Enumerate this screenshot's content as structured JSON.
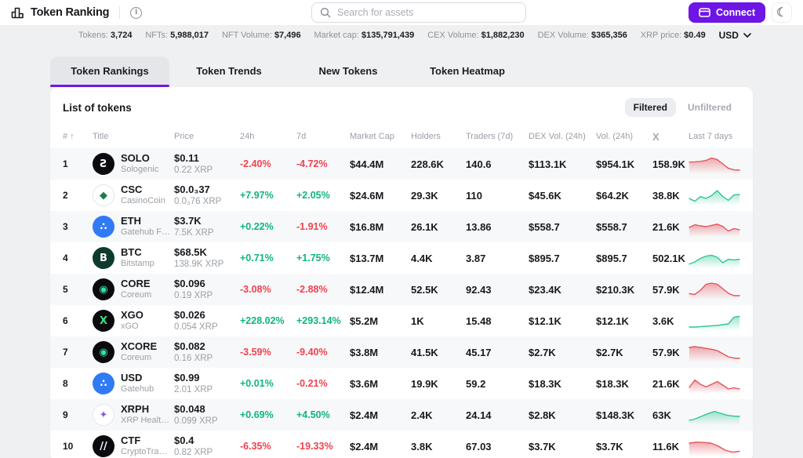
{
  "header": {
    "app_title": "Token Ranking",
    "info_glyph": "i",
    "search_placeholder": "Search for assets",
    "connect_label": "Connect",
    "currency": "USD"
  },
  "stats": [
    {
      "label": "Tokens:",
      "value": "3,724"
    },
    {
      "label": "NFTs:",
      "value": "5,988,017"
    },
    {
      "label": "NFT Volume:",
      "value": "$7,496"
    },
    {
      "label": "Market cap:",
      "value": "$135,791,439"
    },
    {
      "label": "CEX Volume:",
      "value": "$1,882,230"
    },
    {
      "label": "DEX Volume:",
      "value": "$365,356"
    },
    {
      "label": "XRP price:",
      "value": "$0.49"
    }
  ],
  "tabs": [
    {
      "label": "Token Rankings",
      "active": true
    },
    {
      "label": "Token Trends",
      "active": false
    },
    {
      "label": "New Tokens",
      "active": false
    },
    {
      "label": "Token Heatmap",
      "active": false
    }
  ],
  "panel": {
    "title": "List of tokens",
    "filter_buttons": [
      {
        "label": "Filtered",
        "active": true
      },
      {
        "label": "Unfiltered",
        "active": false
      }
    ]
  },
  "table": {
    "columns": [
      "#",
      "Title",
      "Price",
      "24h",
      "7d",
      "Market Cap",
      "Holders",
      "Traders (7d)",
      "DEX Vol. (24h)",
      "Vol. (24h)",
      "X",
      "Last 7 days"
    ],
    "rows": [
      {
        "rank": "1",
        "symbol": "SOLO",
        "issuer": "Sologenic",
        "price_usd": "$0.11",
        "price_xrp": "0.22 XRP",
        "change_24h": "-2.40%",
        "change_7d": "-4.72%",
        "market_cap": "$44.4M",
        "holders": "228.6K",
        "traders": "140.6",
        "dex_vol": "$113.1K",
        "vol": "$954.1K",
        "x_followers": "158.9K",
        "icon": {
          "glyph": "Ƨ",
          "bg": "#0b0b0f",
          "fg": "#ffffff",
          "border": false
        },
        "spark": {
          "trend": "down",
          "points": [
            0.62,
            0.63,
            0.66,
            0.72,
            0.88,
            0.78,
            0.5,
            0.22,
            0.12,
            0.1
          ]
        }
      },
      {
        "rank": "2",
        "symbol": "CSC",
        "issuer": "CasinoCoin",
        "price_usd": "$0.0₃37",
        "price_xrp": "0.0₃76 XRP",
        "change_24h": "+7.97%",
        "change_7d": "+2.05%",
        "market_cap": "$24.6M",
        "holders": "29.3K",
        "traders": "110",
        "dex_vol": "$45.6K",
        "vol": "$64.2K",
        "x_followers": "38.8K",
        "icon": {
          "glyph": "◆",
          "bg": "#ffffff",
          "fg": "#1e7a4f",
          "border": true
        },
        "spark": {
          "trend": "up",
          "points": [
            0.3,
            0.12,
            0.42,
            0.3,
            0.48,
            0.8,
            0.42,
            0.18,
            0.52,
            0.55
          ]
        }
      },
      {
        "rank": "3",
        "symbol": "ETH",
        "issuer": "Gatehub Fifth",
        "price_usd": "$3.7K",
        "price_xrp": "7.5K XRP",
        "change_24h": "+0.22%",
        "change_7d": "-1.91%",
        "market_cap": "$16.8M",
        "holders": "26.1K",
        "traders": "13.86",
        "dex_vol": "$558.7",
        "vol": "$558.7",
        "x_followers": "21.6K",
        "icon": {
          "glyph": "∴",
          "bg": "#2f7bf6",
          "fg": "#ffffff",
          "border": false
        },
        "spark": {
          "trend": "down",
          "points": [
            0.45,
            0.62,
            0.55,
            0.5,
            0.58,
            0.66,
            0.52,
            0.22,
            0.38,
            0.3
          ]
        }
      },
      {
        "rank": "4",
        "symbol": "BTC",
        "issuer": "Bitstamp",
        "price_usd": "$68.5K",
        "price_xrp": "138.9K XRP",
        "change_24h": "+0.71%",
        "change_7d": "+1.75%",
        "market_cap": "$13.7M",
        "holders": "4.4K",
        "traders": "3.87",
        "dex_vol": "$895.7",
        "vol": "$895.7",
        "x_followers": "502.1K",
        "icon": {
          "glyph": "B",
          "bg": "#0e3b2e",
          "fg": "#ffffff",
          "border": false
        },
        "spark": {
          "trend": "up",
          "points": [
            0.12,
            0.25,
            0.48,
            0.62,
            0.68,
            0.55,
            0.2,
            0.42,
            0.38,
            0.42
          ]
        }
      },
      {
        "rank": "5",
        "symbol": "CORE",
        "issuer": "Coreum",
        "price_usd": "$0.096",
        "price_xrp": "0.19 XRP",
        "change_24h": "-3.08%",
        "change_7d": "-2.88%",
        "market_cap": "$12.4M",
        "holders": "52.5K",
        "traders": "92.43",
        "dex_vol": "$23.4K",
        "vol": "$210.3K",
        "x_followers": "57.9K",
        "icon": {
          "glyph": "◉",
          "bg": "#0b0b0f",
          "fg": "#35e0a1",
          "border": false
        },
        "spark": {
          "trend": "down",
          "points": [
            0.22,
            0.18,
            0.45,
            0.82,
            0.9,
            0.83,
            0.55,
            0.25,
            0.1,
            0.1
          ]
        }
      },
      {
        "rank": "6",
        "symbol": "XGO",
        "issuer": "xGO",
        "price_usd": "$0.026",
        "price_xrp": "0.054 XRP",
        "change_24h": "+228.02%",
        "change_7d": "+293.14%",
        "market_cap": "$5.2M",
        "holders": "1K",
        "traders": "15.48",
        "dex_vol": "$12.1K",
        "vol": "$12.1K",
        "x_followers": "3.6K",
        "icon": {
          "glyph": "X",
          "bg": "#0b0b0f",
          "fg": "#35e087",
          "border": false
        },
        "spark": {
          "trend": "up",
          "points": [
            0.1,
            0.1,
            0.12,
            0.15,
            0.18,
            0.2,
            0.25,
            0.3,
            0.72,
            0.78
          ]
        }
      },
      {
        "rank": "7",
        "symbol": "XCORE",
        "issuer": "Coreum",
        "price_usd": "$0.082",
        "price_xrp": "0.16 XRP",
        "change_24h": "-3.59%",
        "change_7d": "-9.40%",
        "market_cap": "$3.8M",
        "holders": "41.5K",
        "traders": "45.17",
        "dex_vol": "$2.7K",
        "vol": "$2.7K",
        "x_followers": "57.9K",
        "icon": {
          "glyph": "◉",
          "bg": "#0b0b0f",
          "fg": "#35e0a1",
          "border": false
        },
        "spark": {
          "trend": "down",
          "points": [
            0.8,
            0.85,
            0.8,
            0.74,
            0.68,
            0.6,
            0.4,
            0.2,
            0.12,
            0.1
          ]
        }
      },
      {
        "rank": "8",
        "symbol": "USD",
        "issuer": "Gatehub",
        "price_usd": "$0.99",
        "price_xrp": "2.01 XRP",
        "change_24h": "+0.01%",
        "change_7d": "-0.21%",
        "market_cap": "$3.6M",
        "holders": "19.9K",
        "traders": "59.2",
        "dex_vol": "$18.3K",
        "vol": "$18.3K",
        "x_followers": "21.6K",
        "icon": {
          "glyph": "∴",
          "bg": "#2f7bf6",
          "fg": "#ffffff",
          "border": false
        },
        "spark": {
          "trend": "down",
          "points": [
            0.25,
            0.72,
            0.45,
            0.28,
            0.45,
            0.62,
            0.4,
            0.15,
            0.22,
            0.15
          ]
        }
      },
      {
        "rank": "9",
        "symbol": "XRPH",
        "issuer": "XRP Healthcare",
        "price_usd": "$0.048",
        "price_xrp": "0.099 XRP",
        "change_24h": "+0.69%",
        "change_7d": "+4.50%",
        "market_cap": "$2.4M",
        "holders": "2.4K",
        "traders": "24.14",
        "dex_vol": "$2.8K",
        "vol": "$148.3K",
        "x_followers": "63K",
        "icon": {
          "glyph": "✦",
          "bg": "#ffffff",
          "fg": "#8a5cd8",
          "border": true
        },
        "spark": {
          "trend": "up",
          "points": [
            0.15,
            0.25,
            0.42,
            0.58,
            0.72,
            0.6,
            0.48,
            0.42,
            0.4
          ]
        }
      },
      {
        "rank": "10",
        "symbol": "CTF",
        "issuer": "CryptoTradIn...",
        "price_usd": "$0.4",
        "price_xrp": "0.82 XRP",
        "change_24h": "-6.35%",
        "change_7d": "-19.33%",
        "market_cap": "$2.4M",
        "holders": "3.8K",
        "traders": "67.03",
        "dex_vol": "$3.7K",
        "vol": "$3.7K",
        "x_followers": "11.6K",
        "icon": {
          "glyph": "//",
          "bg": "#0b0b0f",
          "fg": "#ffffff",
          "border": false
        },
        "spark": {
          "trend": "down",
          "points": [
            0.7,
            0.76,
            0.74,
            0.7,
            0.52,
            0.25,
            0.12,
            0.18
          ]
        }
      }
    ]
  },
  "colors": {
    "accent": "#6e16e6",
    "positive": "#0fb57f",
    "negative": "#f2414e",
    "spark_positive": "#2ec695",
    "spark_negative": "#e4555e"
  }
}
